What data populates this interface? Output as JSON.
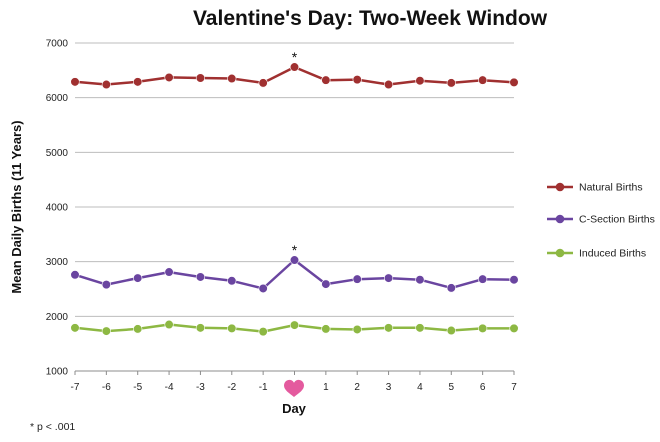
{
  "chart_data": {
    "type": "line",
    "title": "Valentine's Day: Two-Week Window",
    "xlabel": "Day",
    "ylabel": "Mean Daily Births (11 Years)",
    "x": [
      "-7",
      "-6",
      "-5",
      "-4",
      "-3",
      "-2",
      "-1",
      "0",
      "1",
      "2",
      "3",
      "4",
      "5",
      "6",
      "7"
    ],
    "x_tick_labels": [
      "-7",
      "-6",
      "-5",
      "-4",
      "-3",
      "-2",
      "-1",
      "",
      "1",
      "2",
      "3",
      "4",
      "5",
      "6",
      "7"
    ],
    "center_marker_icon": "heart-icon",
    "ylim": [
      1000,
      7000
    ],
    "yticks": [
      "1000",
      "2000",
      "3000",
      "4000",
      "5000",
      "6000",
      "7000"
    ],
    "grid": true,
    "legend_position": "right",
    "series": [
      {
        "name": "Natural Births",
        "color": "#a03030",
        "values": [
          6290,
          6240,
          6290,
          6370,
          6360,
          6350,
          6270,
          6560,
          6320,
          6330,
          6240,
          6310,
          6270,
          6320,
          6280
        ]
      },
      {
        "name": "C-Section Births",
        "color": "#6a45a0",
        "values": [
          2760,
          2580,
          2700,
          2810,
          2720,
          2650,
          2510,
          3030,
          2590,
          2680,
          2700,
          2670,
          2520,
          2680,
          2670
        ]
      },
      {
        "name": "Induced Births",
        "color": "#8db843",
        "values": [
          1790,
          1730,
          1770,
          1850,
          1790,
          1780,
          1720,
          1840,
          1770,
          1760,
          1790,
          1790,
          1740,
          1780,
          1780
        ]
      }
    ],
    "annotations": [
      {
        "series": "Natural Births",
        "x": "0",
        "text": "*"
      },
      {
        "series": "C-Section Births",
        "x": "0",
        "text": "*"
      }
    ],
    "footnote": "* p < .001"
  }
}
